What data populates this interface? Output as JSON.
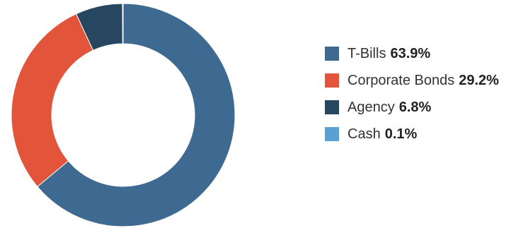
{
  "chart_data": {
    "type": "pie",
    "donut": true,
    "slices": [
      {
        "label": "T-Bills",
        "value": 63.9,
        "display": "63.9%",
        "color": "#3e6a91"
      },
      {
        "label": "Corporate Bonds",
        "value": 29.2,
        "display": "29.2%",
        "color": "#e2553a"
      },
      {
        "label": "Agency",
        "value": 6.8,
        "display": "6.8%",
        "color": "#274761"
      },
      {
        "label": "Cash",
        "value": 0.1,
        "display": "0.1%",
        "color": "#5aa0d4"
      }
    ],
    "legend_position": "right"
  }
}
